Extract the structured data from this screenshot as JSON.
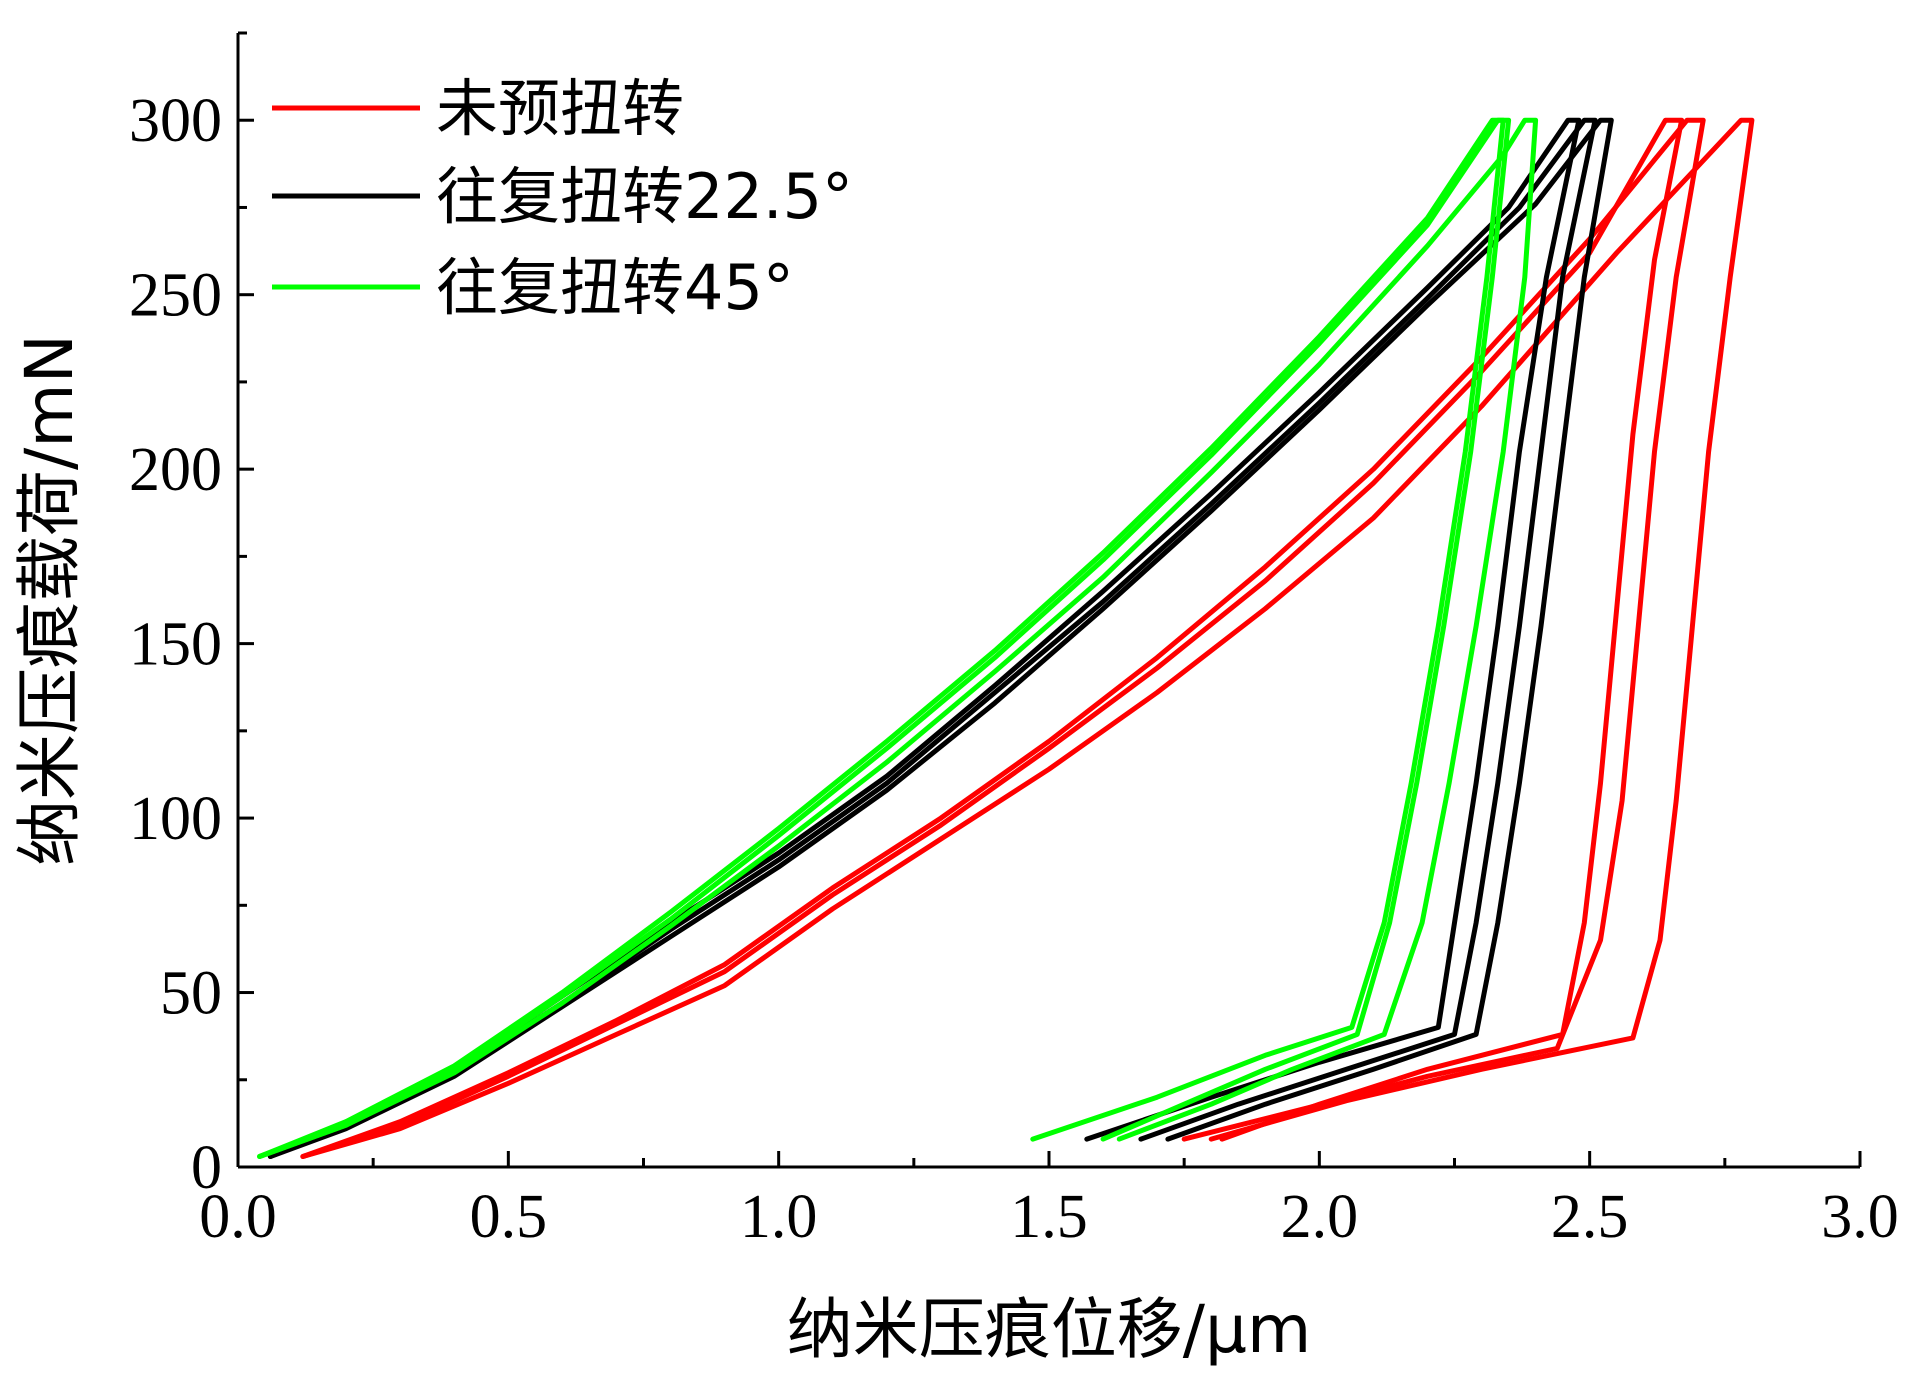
{
  "chart_data": {
    "type": "line",
    "xlabel": "纳米压痕位移/μm",
    "ylabel": "纳米压痕载荷/mN",
    "xlim": [
      0,
      3.0
    ],
    "ylim": [
      0,
      325
    ],
    "xticks": [
      0.0,
      0.5,
      1.0,
      1.5,
      2.0,
      2.5,
      3.0
    ],
    "xtick_labels": [
      "0.0",
      "0.5",
      "1.0",
      "1.5",
      "2.0",
      "2.5",
      "3.0"
    ],
    "yticks": [
      0,
      50,
      100,
      150,
      200,
      250,
      300
    ],
    "ytick_labels": [
      "0",
      "50",
      "100",
      "150",
      "200",
      "250",
      "300"
    ],
    "grid": false,
    "legend_position": "top-left",
    "series": [
      {
        "name": "未预扭转",
        "color": "#ff0000",
        "curves": [
          {
            "loading": [
              [
                0.12,
                3
              ],
              [
                0.3,
                12
              ],
              [
                0.5,
                26
              ],
              [
                0.7,
                41
              ],
              [
                0.9,
                56
              ],
              [
                1.1,
                78
              ],
              [
                1.3,
                98
              ],
              [
                1.5,
                120
              ],
              [
                1.7,
                143
              ],
              [
                1.9,
                168
              ],
              [
                2.1,
                196
              ],
              [
                2.3,
                228
              ],
              [
                2.5,
                262
              ],
              [
                2.64,
                300
              ]
            ],
            "unloading": [
              [
                2.67,
                300
              ],
              [
                2.62,
                260
              ],
              [
                2.58,
                210
              ],
              [
                2.55,
                160
              ],
              [
                2.52,
                110
              ],
              [
                2.49,
                70
              ],
              [
                2.45,
                38
              ],
              [
                2.2,
                28
              ],
              [
                2.0,
                18
              ],
              [
                1.82,
                8
              ]
            ]
          },
          {
            "loading": [
              [
                0.12,
                3
              ],
              [
                0.3,
                13
              ],
              [
                0.5,
                27
              ],
              [
                0.7,
                42
              ],
              [
                0.9,
                58
              ],
              [
                1.1,
                80
              ],
              [
                1.3,
                100
              ],
              [
                1.5,
                122
              ],
              [
                1.7,
                146
              ],
              [
                1.9,
                172
              ],
              [
                2.1,
                200
              ],
              [
                2.3,
                232
              ],
              [
                2.5,
                266
              ],
              [
                2.68,
                300
              ]
            ],
            "unloading": [
              [
                2.71,
                300
              ],
              [
                2.66,
                255
              ],
              [
                2.62,
                205
              ],
              [
                2.59,
                155
              ],
              [
                2.56,
                105
              ],
              [
                2.52,
                65
              ],
              [
                2.44,
                34
              ],
              [
                2.2,
                26
              ],
              [
                1.98,
                17
              ],
              [
                1.75,
                8
              ]
            ]
          },
          {
            "loading": [
              [
                0.12,
                3
              ],
              [
                0.3,
                11
              ],
              [
                0.5,
                24
              ],
              [
                0.7,
                38
              ],
              [
                0.9,
                52
              ],
              [
                1.1,
                74
              ],
              [
                1.3,
                94
              ],
              [
                1.5,
                114
              ],
              [
                1.7,
                136
              ],
              [
                1.9,
                160
              ],
              [
                2.1,
                186
              ],
              [
                2.3,
                218
              ],
              [
                2.55,
                262
              ],
              [
                2.78,
                300
              ]
            ],
            "unloading": [
              [
                2.8,
                300
              ],
              [
                2.76,
                255
              ],
              [
                2.72,
                205
              ],
              [
                2.69,
                155
              ],
              [
                2.66,
                105
              ],
              [
                2.63,
                65
              ],
              [
                2.58,
                37
              ],
              [
                2.3,
                28
              ],
              [
                2.05,
                19
              ],
              [
                1.8,
                8
              ]
            ]
          }
        ]
      },
      {
        "name": "往复扭转22.5°",
        "color": "#000000",
        "curves": [
          {
            "loading": [
              [
                0.06,
                3
              ],
              [
                0.2,
                12
              ],
              [
                0.4,
                28
              ],
              [
                0.6,
                49
              ],
              [
                0.8,
                70
              ],
              [
                1.0,
                90
              ],
              [
                1.2,
                112
              ],
              [
                1.4,
                138
              ],
              [
                1.6,
                165
              ],
              [
                1.8,
                193
              ],
              [
                2.0,
                222
              ],
              [
                2.2,
                252
              ],
              [
                2.35,
                275
              ],
              [
                2.46,
                300
              ]
            ],
            "unloading": [
              [
                2.48,
                300
              ],
              [
                2.42,
                255
              ],
              [
                2.37,
                205
              ],
              [
                2.33,
                155
              ],
              [
                2.29,
                110
              ],
              [
                2.25,
                70
              ],
              [
                2.22,
                40
              ],
              [
                2.0,
                30
              ],
              [
                1.8,
                20
              ],
              [
                1.57,
                8
              ]
            ]
          },
          {
            "loading": [
              [
                0.06,
                3
              ],
              [
                0.2,
                12
              ],
              [
                0.4,
                27
              ],
              [
                0.6,
                47
              ],
              [
                0.8,
                68
              ],
              [
                1.0,
                88
              ],
              [
                1.2,
                110
              ],
              [
                1.4,
                136
              ],
              [
                1.6,
                162
              ],
              [
                1.8,
                190
              ],
              [
                2.0,
                219
              ],
              [
                2.2,
                249
              ],
              [
                2.37,
                275
              ],
              [
                2.49,
                300
              ]
            ],
            "unloading": [
              [
                2.51,
                300
              ],
              [
                2.45,
                255
              ],
              [
                2.41,
                205
              ],
              [
                2.37,
                155
              ],
              [
                2.33,
                110
              ],
              [
                2.29,
                70
              ],
              [
                2.25,
                38
              ],
              [
                2.05,
                28
              ],
              [
                1.85,
                18
              ],
              [
                1.67,
                8
              ]
            ]
          },
          {
            "loading": [
              [
                0.06,
                3
              ],
              [
                0.2,
                11
              ],
              [
                0.4,
                26
              ],
              [
                0.6,
                46
              ],
              [
                0.8,
                66
              ],
              [
                1.0,
                86
              ],
              [
                1.2,
                108
              ],
              [
                1.4,
                133
              ],
              [
                1.6,
                160
              ],
              [
                1.8,
                188
              ],
              [
                2.0,
                217
              ],
              [
                2.2,
                247
              ],
              [
                2.4,
                276
              ],
              [
                2.52,
                300
              ]
            ],
            "unloading": [
              [
                2.54,
                300
              ],
              [
                2.49,
                255
              ],
              [
                2.45,
                205
              ],
              [
                2.41,
                155
              ],
              [
                2.37,
                110
              ],
              [
                2.33,
                70
              ],
              [
                2.29,
                38
              ],
              [
                2.1,
                28
              ],
              [
                1.9,
                18
              ],
              [
                1.72,
                8
              ]
            ]
          }
        ]
      },
      {
        "name": "往复扭转45°",
        "color": "#00ff00",
        "curves": [
          {
            "loading": [
              [
                0.04,
                3
              ],
              [
                0.2,
                13
              ],
              [
                0.4,
                29
              ],
              [
                0.6,
                50
              ],
              [
                0.8,
                73
              ],
              [
                1.0,
                97
              ],
              [
                1.2,
                122
              ],
              [
                1.4,
                148
              ],
              [
                1.6,
                176
              ],
              [
                1.8,
                206
              ],
              [
                2.0,
                238
              ],
              [
                2.2,
                272
              ],
              [
                2.32,
                300
              ]
            ],
            "unloading": [
              [
                2.34,
                300
              ],
              [
                2.31,
                255
              ],
              [
                2.27,
                205
              ],
              [
                2.22,
                155
              ],
              [
                2.17,
                110
              ],
              [
                2.12,
                70
              ],
              [
                2.06,
                40
              ],
              [
                1.9,
                32
              ],
              [
                1.7,
                20
              ],
              [
                1.47,
                8
              ]
            ]
          },
          {
            "loading": [
              [
                0.04,
                3
              ],
              [
                0.2,
                12
              ],
              [
                0.4,
                28
              ],
              [
                0.6,
                49
              ],
              [
                0.8,
                71
              ],
              [
                1.0,
                95
              ],
              [
                1.2,
                120
              ],
              [
                1.4,
                146
              ],
              [
                1.6,
                174
              ],
              [
                1.8,
                204
              ],
              [
                2.0,
                236
              ],
              [
                2.2,
                270
              ],
              [
                2.33,
                300
              ]
            ],
            "unloading": [
              [
                2.35,
                300
              ],
              [
                2.32,
                255
              ],
              [
                2.28,
                205
              ],
              [
                2.23,
                155
              ],
              [
                2.18,
                110
              ],
              [
                2.13,
                70
              ],
              [
                2.07,
                38
              ],
              [
                1.9,
                28
              ],
              [
                1.75,
                18
              ],
              [
                1.6,
                8
              ]
            ]
          },
          {
            "loading": [
              [
                0.04,
                3
              ],
              [
                0.2,
                12
              ],
              [
                0.4,
                27
              ],
              [
                0.6,
                47
              ],
              [
                0.8,
                69
              ],
              [
                1.0,
                92
              ],
              [
                1.2,
                116
              ],
              [
                1.4,
                142
              ],
              [
                1.6,
                169
              ],
              [
                1.8,
                199
              ],
              [
                2.0,
                230
              ],
              [
                2.2,
                264
              ],
              [
                2.34,
                290
              ],
              [
                2.38,
                300
              ]
            ],
            "unloading": [
              [
                2.4,
                300
              ],
              [
                2.38,
                255
              ],
              [
                2.34,
                205
              ],
              [
                2.29,
                155
              ],
              [
                2.24,
                110
              ],
              [
                2.19,
                70
              ],
              [
                2.12,
                38
              ],
              [
                1.95,
                28
              ],
              [
                1.8,
                18
              ],
              [
                1.63,
                8
              ]
            ]
          }
        ]
      }
    ]
  }
}
